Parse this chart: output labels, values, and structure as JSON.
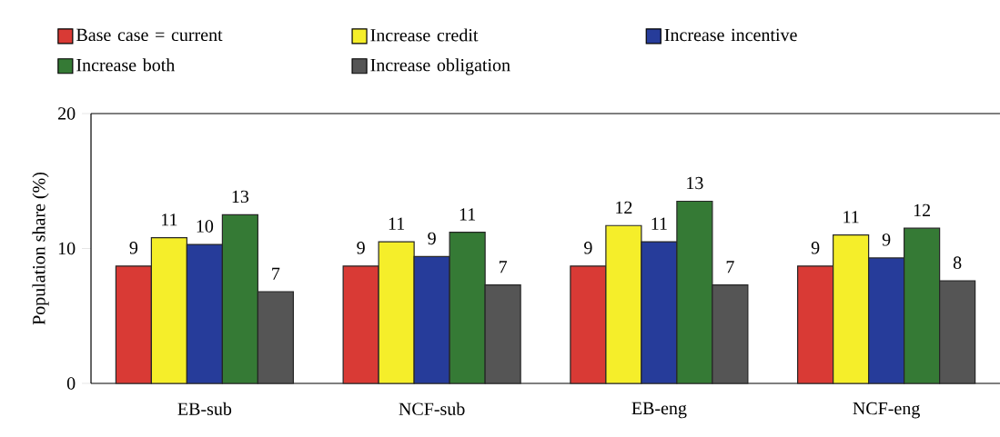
{
  "chart_data": {
    "type": "bar",
    "ylabel": "Population share (%)",
    "categories": [
      "EB-sub",
      "NCF-sub",
      "EB-eng",
      "NCF-eng"
    ],
    "series": [
      {
        "name": "Base case = current",
        "color": "#d93a35",
        "values": [
          8.7,
          8.7,
          8.7,
          8.7
        ],
        "value_labels": [
          "9",
          "9",
          "9",
          "9"
        ]
      },
      {
        "name": "Increase credit",
        "color": "#f5ee2a",
        "values": [
          10.8,
          10.5,
          11.7,
          11.0
        ],
        "value_labels": [
          "11",
          "11",
          "12",
          "11"
        ]
      },
      {
        "name": "Increase incentive",
        "color": "#263c9a",
        "values": [
          10.3,
          9.4,
          10.5,
          9.3
        ],
        "value_labels": [
          "10",
          "9",
          "11",
          "9"
        ]
      },
      {
        "name": "Increase both",
        "color": "#357a35",
        "values": [
          12.5,
          11.2,
          13.5,
          11.5
        ],
        "value_labels": [
          "13",
          "11",
          "13",
          "12"
        ]
      },
      {
        "name": "Increase obligation",
        "color": "#555555",
        "values": [
          6.8,
          7.3,
          7.3,
          7.6
        ],
        "value_labels": [
          "7",
          "7",
          "7",
          "8"
        ]
      }
    ],
    "ylim": [
      0,
      20
    ],
    "yticks": [
      0,
      10,
      20
    ],
    "legend": "top",
    "grid": false
  }
}
